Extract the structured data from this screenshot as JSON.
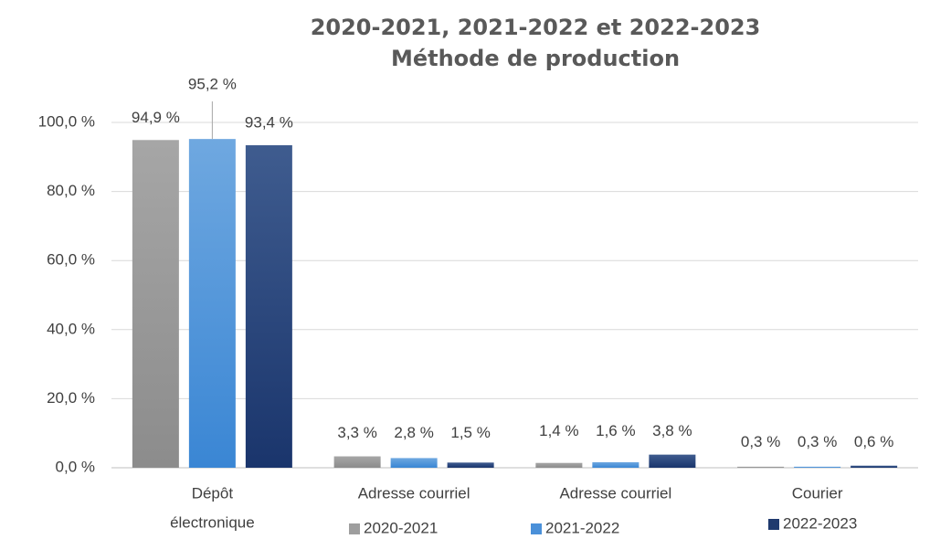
{
  "chart_data": {
    "type": "bar",
    "title_lines": [
      "2020-2021, 2021-2022 et 2022-2023",
      "Méthode de production"
    ],
    "categories": [
      [
        "Dépôt",
        "électronique"
      ],
      [
        "Adresse courriel"
      ],
      [
        "Adresse courriel"
      ],
      [
        "Courier"
      ]
    ],
    "series": [
      {
        "name": "2020-2021",
        "values": [
          94.9,
          3.3,
          1.4,
          0.3
        ],
        "labels": [
          "94,9 %",
          "3,3 %",
          "1,4 %",
          "0,3 %"
        ],
        "color": "#9e9e9e"
      },
      {
        "name": "2021-2022",
        "values": [
          95.2,
          2.8,
          1.6,
          0.3
        ],
        "labels": [
          "95,2 %",
          "2,8 %",
          "1,6 %",
          "0,3 %"
        ],
        "color": "#4a90d9"
      },
      {
        "name": "2022-2023",
        "values": [
          93.4,
          1.5,
          3.8,
          0.6
        ],
        "labels": [
          "93,4 %",
          "1,5 %",
          "3,8 %",
          "0,6 %"
        ],
        "color": "#1f3a6e"
      }
    ],
    "yticks": [
      "0,0 %",
      "20,0 %",
      "40,0 %",
      "60,0 %",
      "80,0 %",
      "100,0 %"
    ],
    "ylim": [
      0,
      100
    ],
    "grid": true,
    "legend_position": "bottom"
  }
}
